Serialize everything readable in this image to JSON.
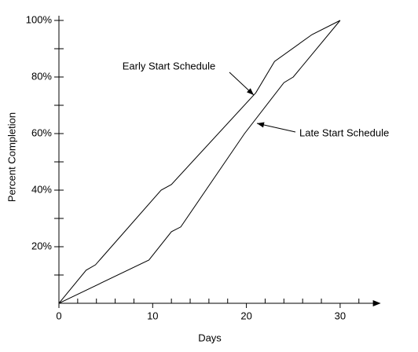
{
  "chart_data": {
    "type": "line",
    "x_label": "Days",
    "y_label": "Percent Completion",
    "series": [
      {
        "name": "Early Start Schedule",
        "color": "#000000",
        "x": [
          0,
          2.9,
          3.9,
          10.9,
          12,
          21,
          23,
          27,
          30
        ],
        "values": [
          0,
          11.7,
          13.6,
          40,
          42,
          74.4,
          85.5,
          95,
          100
        ]
      },
      {
        "name": "Late Start Schedule",
        "color": "#000000",
        "x": [
          0,
          9.6,
          12,
          13,
          19.8,
          24,
          25,
          30
        ],
        "values": [
          0,
          15.3,
          25.3,
          27,
          60,
          78,
          80,
          100
        ]
      }
    ],
    "xlim": [
      0,
      34
    ],
    "ylim": [
      0,
      100
    ],
    "xticks": [
      0,
      10,
      20,
      30
    ],
    "xminor_ticks": [
      2,
      4,
      6,
      8,
      12,
      14,
      16,
      18,
      22,
      24,
      26,
      28,
      32
    ],
    "yticks": [
      {
        "value": 20,
        "label": "20%"
      },
      {
        "value": 40,
        "label": "40%"
      },
      {
        "value": 60,
        "label": "60%"
      },
      {
        "value": 80,
        "label": "80%"
      },
      {
        "value": 100,
        "label": "100%"
      }
    ],
    "yminor_ticks": [
      10,
      30,
      50,
      70,
      90
    ]
  }
}
